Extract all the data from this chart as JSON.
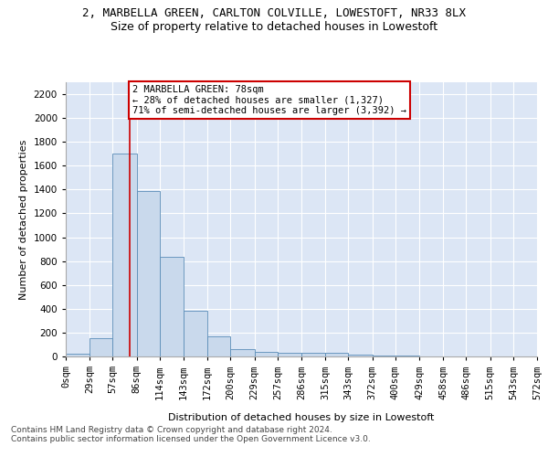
{
  "title": "2, MARBELLA GREEN, CARLTON COLVILLE, LOWESTOFT, NR33 8LX",
  "subtitle": "Size of property relative to detached houses in Lowestoft",
  "xlabel": "Distribution of detached houses by size in Lowestoft",
  "ylabel": "Number of detached properties",
  "footer_line1": "Contains HM Land Registry data © Crown copyright and database right 2024.",
  "footer_line2": "Contains public sector information licensed under the Open Government Licence v3.0.",
  "annotation_line1": "2 MARBELLA GREEN: 78sqm",
  "annotation_line2": "← 28% of detached houses are smaller (1,327)",
  "annotation_line3": "71% of semi-detached houses are larger (3,392) →",
  "property_size": 78,
  "bin_edges": [
    0,
    29,
    57,
    86,
    114,
    143,
    172,
    200,
    229,
    257,
    286,
    315,
    343,
    372,
    400,
    429,
    458,
    486,
    515,
    543,
    572
  ],
  "bar_values": [
    20,
    155,
    1700,
    1390,
    835,
    385,
    165,
    65,
    35,
    28,
    28,
    28,
    15,
    5,
    5,
    2,
    2,
    2,
    1,
    1
  ],
  "bar_color": "#c9d9ec",
  "bar_edge_color": "#5b8db8",
  "vline_color": "#cc0000",
  "vline_x": 78,
  "ylim": [
    0,
    2300
  ],
  "yticks": [
    0,
    200,
    400,
    600,
    800,
    1000,
    1200,
    1400,
    1600,
    1800,
    2000,
    2200
  ],
  "background_color": "#dce6f5",
  "grid_color": "#ffffff",
  "annotation_box_color": "#ffffff",
  "annotation_box_edge_color": "#cc0000",
  "title_fontsize": 9,
  "subtitle_fontsize": 9,
  "axis_label_fontsize": 8,
  "tick_fontsize": 7.5,
  "annotation_fontsize": 7.5,
  "footer_fontsize": 6.5
}
